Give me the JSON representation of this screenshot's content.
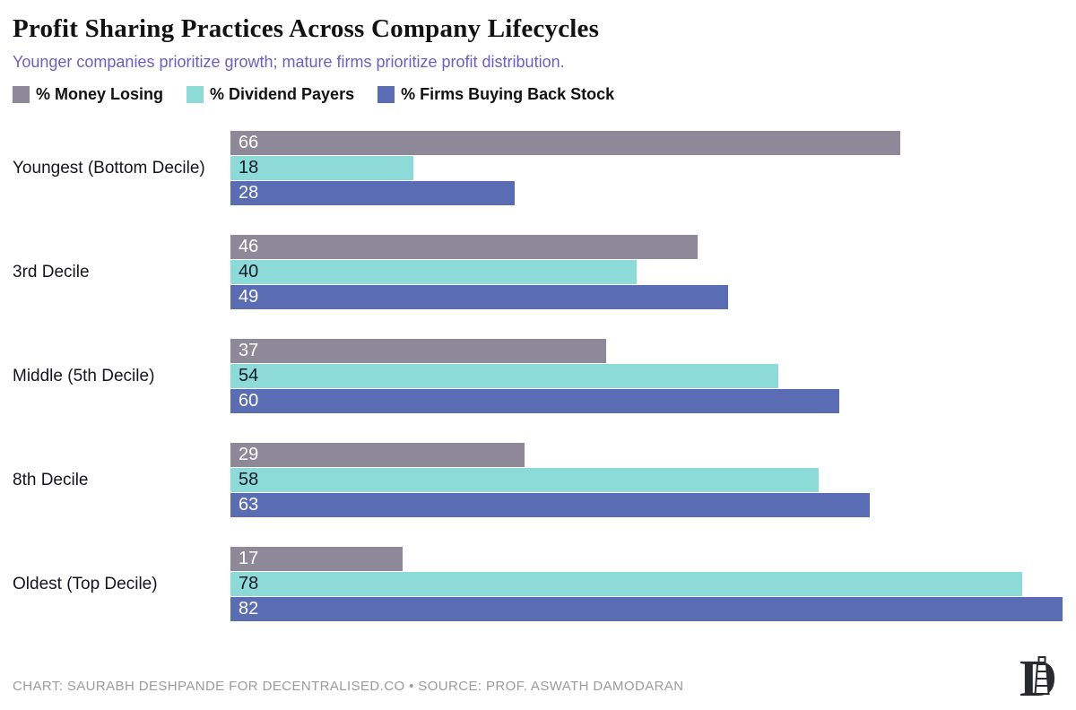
{
  "header": {
    "title": "Profit Sharing Practices Across Company Lifecycles",
    "subtitle": "Younger companies prioritize growth; mature firms prioritize profit distribution."
  },
  "legend": [
    {
      "key": "money-losing",
      "label": "% Money Losing",
      "color": "#8d8999"
    },
    {
      "key": "dividend-payers",
      "label": "% Dividend Payers",
      "color": "#8ddbd8"
    },
    {
      "key": "buyback",
      "label": "% Firms Buying Back Stock",
      "color": "#5a6cb4"
    }
  ],
  "chart_data": {
    "type": "bar",
    "orientation": "horizontal",
    "title": "Profit Sharing Practices Across Company Lifecycles",
    "categories": [
      "Youngest (Bottom Decile)",
      "3rd Decile",
      "Middle (5th Decile)",
      "8th Decile",
      "Oldest (Top Decile)"
    ],
    "series": [
      {
        "key": "money-losing",
        "name": "% Money Losing",
        "color": "#8d8999",
        "label_color": "#ffffff",
        "values": [
          66,
          46,
          37,
          29,
          17
        ]
      },
      {
        "key": "dividend-payers",
        "name": "% Dividend Payers",
        "color": "#8ddbd8",
        "label_color": "#15182b",
        "values": [
          18,
          40,
          54,
          58,
          78
        ]
      },
      {
        "key": "buyback",
        "name": "% Firms Buying Back Stock",
        "color": "#5a6cb4",
        "label_color": "#ffffff",
        "values": [
          28,
          49,
          60,
          63,
          82
        ]
      }
    ],
    "xlim": [
      0,
      82
    ],
    "value_labels": "inside-left",
    "grid": false,
    "legend_position": "top"
  },
  "footer": {
    "credit": "CHART: SAURABH DESHPANDE FOR DECENTRALISED.CO • SOURCE: PROF. ASWATH DAMODARAN",
    "logo_letter": "D"
  },
  "colors": {
    "background": "#ffffff",
    "title_text": "#121212",
    "subtitle_text": "#6b5ec5",
    "category_text": "#15151f",
    "footer_text": "#9b9b9b",
    "logo_ink": "#282a2e"
  }
}
